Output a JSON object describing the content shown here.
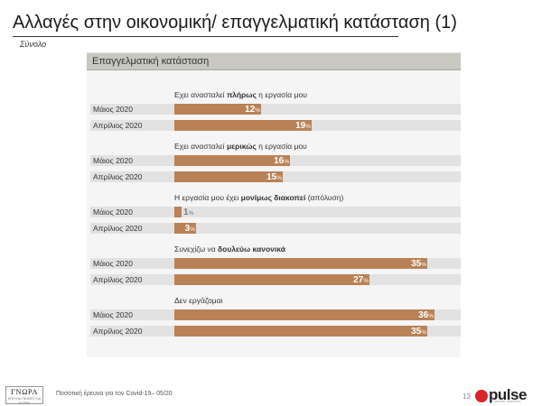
{
  "header": {
    "title": "Αλλαγές στην οικονομική/ επαγγελματική κατάσταση (1)",
    "subtitle": "Σύνολο"
  },
  "panel": {
    "title": "Επαγγελματική κατάσταση"
  },
  "colors": {
    "bar": "#b98256",
    "track": "#e2e2e2"
  },
  "chart_data": {
    "type": "bar",
    "orientation": "horizontal",
    "title": "Επαγγελματική κατάσταση",
    "xlim": [
      0,
      100
    ],
    "unit": "%",
    "series_names": [
      "Μάιος 2020",
      "Απρίλιος 2020"
    ],
    "groups": [
      {
        "title_parts": [
          {
            "text": "Εχει ανασταλεί ",
            "bold": false
          },
          {
            "text": "πλήρως",
            "bold": true
          },
          {
            "text": " η εργασία μου",
            "bold": false
          }
        ],
        "rows": [
          {
            "label": "Μάιος 2020",
            "value": 12
          },
          {
            "label": "Απρίλιος 2020",
            "value": 19
          }
        ]
      },
      {
        "title_parts": [
          {
            "text": "Εχει ανασταλεί ",
            "bold": false
          },
          {
            "text": "μερικώς",
            "bold": true
          },
          {
            "text": " η εργασία μου",
            "bold": false
          }
        ],
        "rows": [
          {
            "label": "Μάιος 2020",
            "value": 16
          },
          {
            "label": "Απρίλιος 2020",
            "value": 15
          }
        ]
      },
      {
        "title_parts": [
          {
            "text": "Η εργασία μου έχει ",
            "bold": false
          },
          {
            "text": "μονίμως διακοπεί",
            "bold": true
          },
          {
            "text": " (απόλυση)",
            "bold": false
          }
        ],
        "rows": [
          {
            "label": "Μάιος 2020",
            "value": 1
          },
          {
            "label": "Απρίλιος 2020",
            "value": 3
          }
        ]
      },
      {
        "title_parts": [
          {
            "text": "Συνεχίζω να ",
            "bold": false
          },
          {
            "text": "δουλεύω κανονικά",
            "bold": true
          }
        ],
        "rows": [
          {
            "label": "Μάιος 2020",
            "value": 35
          },
          {
            "label": "Απρίλιος 2020",
            "value": 27
          }
        ]
      },
      {
        "title_parts": [
          {
            "text": "Δεν εργάζομαι",
            "bold": false
          }
        ],
        "rows": [
          {
            "label": "Μάιος 2020",
            "value": 36
          },
          {
            "label": "Απρίλιος 2020",
            "value": 35
          }
        ]
      }
    ]
  },
  "footer": {
    "logo_line1": "ΓΝΩΡΑ",
    "logo_line2": "ΕΡΕΥΝΑ ΓΝΩΜΗΣ ΚΑΙ ΑΓΟΡΑΣ",
    "text": "Ποσοτική έρευνα για τον Covid-19– 05/20",
    "page_number": "13",
    "brand": "pulse",
    "brand_sub": "market research"
  }
}
